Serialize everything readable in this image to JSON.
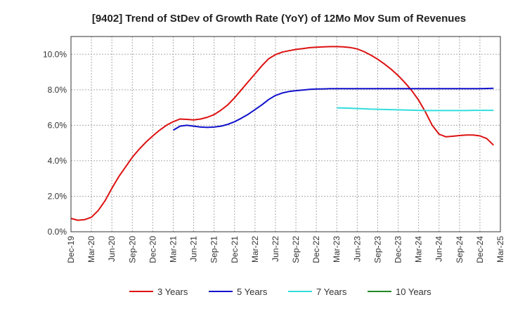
{
  "chart_data": {
    "type": "line",
    "title": "[9402]  Trend of StDev of Growth Rate (YoY) of 12Mo Mov Sum of Revenues",
    "xlabel": "",
    "ylabel": "",
    "ylim": [
      0,
      11
    ],
    "y_ticks": [
      0,
      2,
      4,
      6,
      8,
      10
    ],
    "y_tick_labels": [
      "0.0%",
      "2.0%",
      "4.0%",
      "6.0%",
      "8.0%",
      "10.0%"
    ],
    "x_start": "Dec-19",
    "x_end": "Mar-25",
    "x_tick_labels": [
      "Dec-19",
      "Mar-20",
      "Jun-20",
      "Sep-20",
      "Dec-20",
      "Mar-21",
      "Jun-21",
      "Sep-21",
      "Dec-21",
      "Mar-22",
      "Jun-22",
      "Sep-22",
      "Dec-22",
      "Mar-23",
      "Jun-23",
      "Sep-23",
      "Dec-23",
      "Mar-24",
      "Jun-24",
      "Sep-24",
      "Dec-24",
      "Mar-25"
    ],
    "grid": true,
    "legend_position": "bottom",
    "series": [
      {
        "name": "3 Years",
        "color": "#dd1111",
        "start_index": 0,
        "values": [
          0.75,
          0.65,
          0.68,
          0.82,
          1.2,
          1.75,
          2.45,
          3.1,
          3.65,
          4.2,
          4.65,
          5.05,
          5.4,
          5.72,
          6.0,
          6.2,
          6.35,
          6.33,
          6.3,
          6.35,
          6.45,
          6.6,
          6.85,
          7.15,
          7.55,
          8.0,
          8.45,
          8.9,
          9.35,
          9.75,
          9.98,
          10.12,
          10.2,
          10.27,
          10.32,
          10.37,
          10.4,
          10.42,
          10.43,
          10.43,
          10.42,
          10.38,
          10.3,
          10.15,
          9.95,
          9.72,
          9.45,
          9.15,
          8.8,
          8.4,
          7.95,
          7.42,
          6.75,
          6.0,
          5.5,
          5.35,
          5.38,
          5.42,
          5.45,
          5.45,
          5.4,
          5.25,
          4.88
        ]
      },
      {
        "name": "5 Years",
        "color": "#1111cc",
        "start_index": 15,
        "values": [
          5.72,
          5.95,
          6.0,
          5.95,
          5.9,
          5.88,
          5.9,
          5.95,
          6.05,
          6.2,
          6.4,
          6.62,
          6.88,
          7.15,
          7.45,
          7.68,
          7.82,
          7.9,
          7.95,
          7.98,
          8.02,
          8.04,
          8.05,
          8.06,
          8.06,
          8.06,
          8.06,
          8.06,
          8.06,
          8.06,
          8.06,
          8.06,
          8.06,
          8.06,
          8.06,
          8.06,
          8.06,
          8.06,
          8.06,
          8.06,
          8.06,
          8.06,
          8.06,
          8.06,
          8.06,
          8.06,
          8.07,
          8.08
        ]
      },
      {
        "name": "7 Years",
        "color": "#33dddd",
        "start_index": 39,
        "values": [
          6.98,
          6.97,
          6.96,
          6.94,
          6.93,
          6.91,
          6.9,
          6.89,
          6.88,
          6.87,
          6.86,
          6.85,
          6.84,
          6.83,
          6.83,
          6.83,
          6.83,
          6.83,
          6.83,
          6.83,
          6.84,
          6.84,
          6.84,
          6.84
        ]
      },
      {
        "name": "10 Years",
        "color": "#228822",
        "start_index": 0,
        "values": []
      }
    ]
  }
}
